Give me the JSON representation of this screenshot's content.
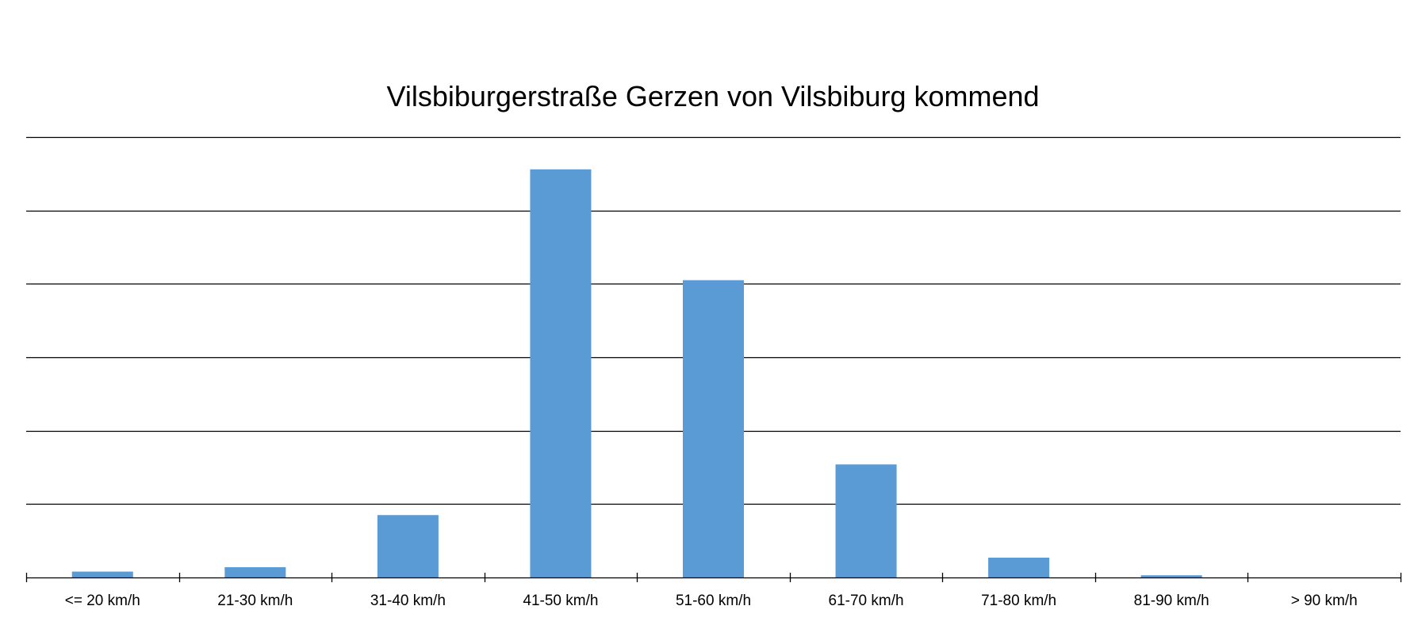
{
  "chart_data": {
    "type": "bar",
    "title": "Vilsbiburgerstraße Gerzen von Vilsbiburg kommend",
    "xlabel": "",
    "ylabel": "",
    "categories": [
      "<= 20 km/h",
      "21-30 km/h",
      "31-40 km/h",
      "41-50 km/h",
      "51-60 km/h",
      "61-70 km/h",
      "71-80 km/h",
      "81-90 km/h",
      "> 90 km/h"
    ],
    "values": [
      0.8,
      1.4,
      8.5,
      55.6,
      40.5,
      15.4,
      2.7,
      0.3,
      0
    ],
    "ylim": [
      0,
      60
    ],
    "y_gridline_step": 10,
    "y_tick_labels_shown": false,
    "grid": true,
    "legend": "none",
    "colors": {
      "bar": "#5b9bd5",
      "gridline": "#000000",
      "axis": "#000000",
      "text": "#000000"
    }
  }
}
